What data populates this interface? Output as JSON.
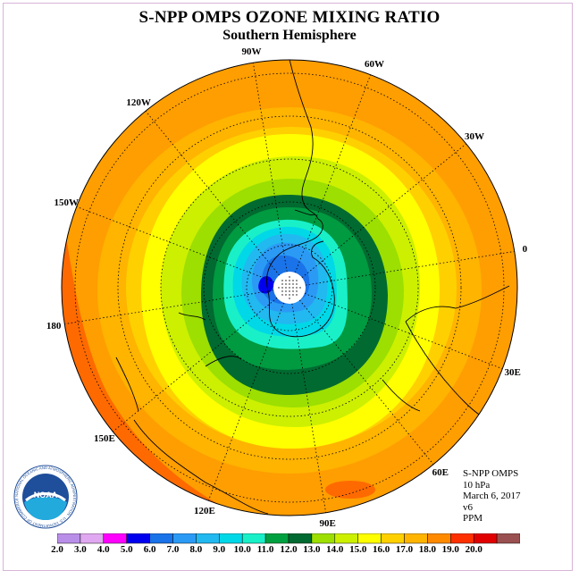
{
  "title": "S-NPP OMPS OZONE MIXING RATIO",
  "subtitle": "Southern Hemisphere",
  "longitude_labels": [
    {
      "text": "90W",
      "lon": -90
    },
    {
      "text": "60W",
      "lon": -60
    },
    {
      "text": "30W",
      "lon": -30
    },
    {
      "text": "0",
      "lon": 0
    },
    {
      "text": "30E",
      "lon": 30
    },
    {
      "text": "60E",
      "lon": 60
    },
    {
      "text": "90E",
      "lon": 90
    },
    {
      "text": "120E",
      "lon": 120
    },
    {
      "text": "150E",
      "lon": 150
    },
    {
      "text": "180",
      "lon": 180
    },
    {
      "text": "150W",
      "lon": -150
    },
    {
      "text": "120W",
      "lon": -120
    }
  ],
  "info": {
    "instrument": "S-NPP OMPS",
    "level": "10 hPa",
    "date": "March 6, 2017",
    "version": "v6",
    "units": "PPM"
  },
  "logo": {
    "text": "NOAA",
    "ring_text": "NATIONAL OCEANIC AND ATMOSPHERIC ADMINISTRATION · U.S. DEPARTMENT OF COMMERCE"
  },
  "colorbar": {
    "labels": [
      "2.0",
      "3.0",
      "4.0",
      "5.0",
      "6.0",
      "7.0",
      "8.0",
      "9.0",
      "10.0",
      "11.0",
      "12.0",
      "13.0",
      "14.0",
      "15.0",
      "16.0",
      "17.0",
      "18.0",
      "19.0",
      "20.0"
    ],
    "colors": [
      "#b98ee8",
      "#e0a8f0",
      "#ff00ff",
      "#0000ee",
      "#1a73e8",
      "#2b9af5",
      "#22b8f0",
      "#00d8e8",
      "#19f0c8",
      "#00a040",
      "#006a30",
      "#9cdf00",
      "#ccf000",
      "#ffff00",
      "#ffd000",
      "#ffb400",
      "#ff8a00",
      "#ff3000",
      "#e00000",
      "#9a5050"
    ]
  },
  "map_colors": {
    "ocean_outer": "#ff9e00",
    "band_17": "#ffb400",
    "band_16": "#ffd000",
    "band_15": "#ffff00",
    "band_14": "#ccf000",
    "band_13": "#9cdf00",
    "band_12": "#006a30",
    "band_11": "#009a40",
    "band_10": "#19f0c8",
    "band_9": "#00d8e8",
    "band_8": "#22b8f0",
    "band_7": "#2b9af5",
    "band_6": "#1a73e8",
    "band_5": "#0000ee",
    "hot_spot": "#ff6a00",
    "outer_edge": "#ff6a00"
  }
}
